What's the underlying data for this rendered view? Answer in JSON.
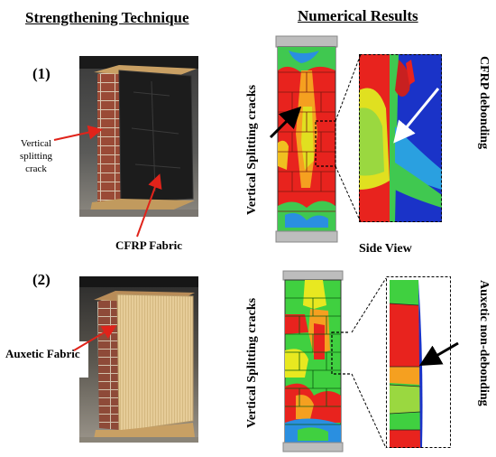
{
  "headers": {
    "left": "Strengthening Technique",
    "right": "Numerical Results"
  },
  "panel1": {
    "number": "(1)",
    "crack_label_line1": "Vertical",
    "crack_label_line2": "splitting",
    "crack_label_line3": "crack",
    "fabric_label": "CFRP Fabric",
    "vertical_label": "Vertical Splitting cracks",
    "side_label": "CFRP debonding",
    "side_view_label": "Side View"
  },
  "panel2": {
    "number": "(2)",
    "fabric_label": "Auxetic Fabric",
    "vertical_label": "Vertical Splitting cracks",
    "side_label": "Auxetic non-debonding"
  },
  "colors": {
    "arrow_red": "#e0231a",
    "fea_red": "#e8231e",
    "fea_green": "#40d040",
    "fea_blue": "#1a33c8",
    "cfrp": "#1c1c1c",
    "auxetic": "#e6cc98"
  }
}
